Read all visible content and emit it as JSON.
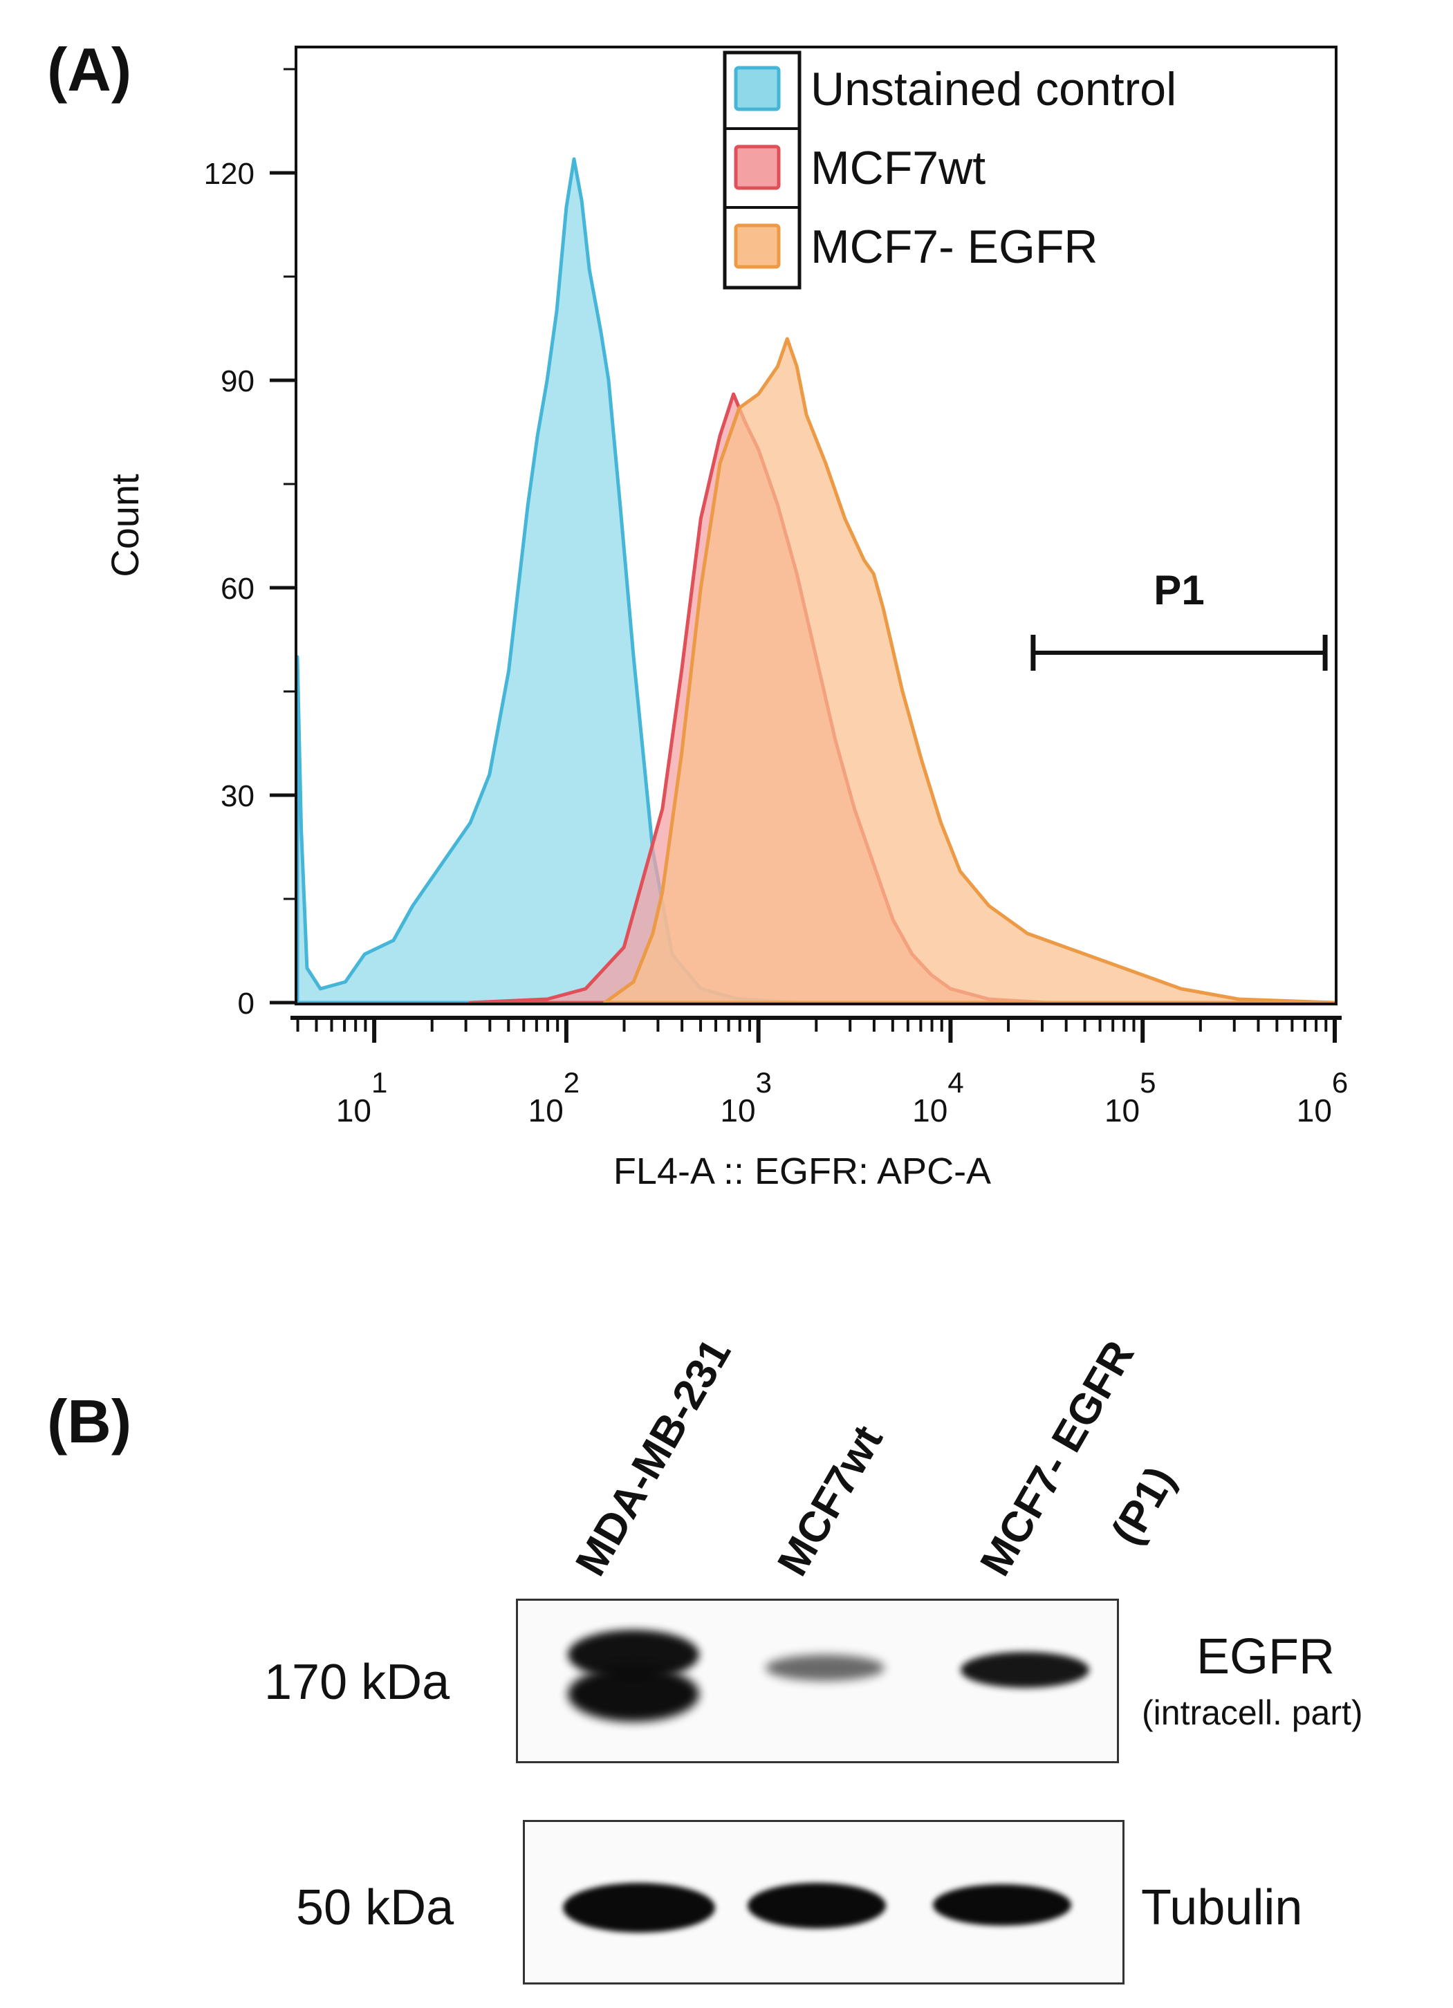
{
  "panel_a": {
    "label": "(A)",
    "gate_label": "P1"
  },
  "chart_data": {
    "type": "area",
    "title": "",
    "xlabel": "FL4-A :: EGFR: APC-A",
    "ylabel": "Count",
    "x_scale": "log10",
    "xlim": [
      0.6,
      6.0
    ],
    "ylim": [
      0,
      138
    ],
    "y_ticks": [
      0,
      30,
      60,
      90,
      120
    ],
    "x_ticks": [
      {
        "base": "10",
        "exp": "1",
        "value": 1
      },
      {
        "base": "10",
        "exp": "2",
        "value": 2
      },
      {
        "base": "10",
        "exp": "3",
        "value": 3
      },
      {
        "base": "10",
        "exp": "4",
        "value": 4
      },
      {
        "base": "10",
        "exp": "5",
        "value": 5
      },
      {
        "base": "10",
        "exp": "6",
        "value": 6
      }
    ],
    "gate": {
      "name": "P1",
      "x_start_log": 4.43,
      "x_end_log": 5.95,
      "y": 52
    },
    "legend": {
      "position": "top-right"
    },
    "series": [
      {
        "name": "Unstained control",
        "fill": "#8fd8ea",
        "stroke": "#45b6d8",
        "points": [
          [
            0.6,
            50
          ],
          [
            0.62,
            25
          ],
          [
            0.65,
            5
          ],
          [
            0.72,
            2
          ],
          [
            0.85,
            3
          ],
          [
            0.95,
            7
          ],
          [
            1.1,
            9
          ],
          [
            1.2,
            14
          ],
          [
            1.4,
            22
          ],
          [
            1.5,
            26
          ],
          [
            1.6,
            33
          ],
          [
            1.7,
            48
          ],
          [
            1.75,
            60
          ],
          [
            1.8,
            72
          ],
          [
            1.85,
            82
          ],
          [
            1.9,
            90
          ],
          [
            1.95,
            100
          ],
          [
            2.0,
            115
          ],
          [
            2.04,
            122
          ],
          [
            2.08,
            116
          ],
          [
            2.12,
            106
          ],
          [
            2.18,
            97
          ],
          [
            2.22,
            90
          ],
          [
            2.28,
            72
          ],
          [
            2.35,
            50
          ],
          [
            2.45,
            22
          ],
          [
            2.55,
            7
          ],
          [
            2.7,
            2
          ],
          [
            2.9,
            0.5
          ],
          [
            3.2,
            0
          ]
        ]
      },
      {
        "name": "MCF7wt",
        "fill": "#f4a1a3",
        "stroke": "#e05058",
        "points": [
          [
            1.5,
            0
          ],
          [
            1.9,
            0.5
          ],
          [
            2.1,
            2
          ],
          [
            2.3,
            8
          ],
          [
            2.5,
            28
          ],
          [
            2.6,
            48
          ],
          [
            2.7,
            70
          ],
          [
            2.8,
            82
          ],
          [
            2.87,
            88
          ],
          [
            2.93,
            84
          ],
          [
            3.0,
            80
          ],
          [
            3.1,
            72
          ],
          [
            3.2,
            62
          ],
          [
            3.3,
            50
          ],
          [
            3.4,
            38
          ],
          [
            3.5,
            28
          ],
          [
            3.6,
            20
          ],
          [
            3.7,
            12
          ],
          [
            3.8,
            7
          ],
          [
            3.9,
            4
          ],
          [
            4.0,
            2
          ],
          [
            4.2,
            0.5
          ],
          [
            4.5,
            0
          ]
        ]
      },
      {
        "name": "MCF7- EGFR",
        "fill": "#f9c08e",
        "stroke": "#ec9a45",
        "points": [
          [
            2.2,
            0
          ],
          [
            2.35,
            3
          ],
          [
            2.45,
            10
          ],
          [
            2.5,
            16
          ],
          [
            2.6,
            36
          ],
          [
            2.7,
            60
          ],
          [
            2.8,
            78
          ],
          [
            2.9,
            86
          ],
          [
            3.0,
            88
          ],
          [
            3.1,
            92
          ],
          [
            3.15,
            96
          ],
          [
            3.2,
            92
          ],
          [
            3.25,
            85
          ],
          [
            3.35,
            78
          ],
          [
            3.45,
            70
          ],
          [
            3.55,
            64
          ],
          [
            3.6,
            62
          ],
          [
            3.65,
            57
          ],
          [
            3.75,
            45
          ],
          [
            3.85,
            35
          ],
          [
            3.95,
            26
          ],
          [
            4.05,
            19
          ],
          [
            4.2,
            14
          ],
          [
            4.4,
            10
          ],
          [
            4.6,
            8
          ],
          [
            4.8,
            6
          ],
          [
            5.0,
            4
          ],
          [
            5.2,
            2
          ],
          [
            5.5,
            0.5
          ],
          [
            6.0,
            0
          ]
        ]
      }
    ]
  },
  "panel_b": {
    "label": "(B)",
    "lanes": [
      "MDA-MB-231",
      "MCF7wt",
      "MCF7- EGFR",
      "(P1)"
    ],
    "blots": [
      {
        "marker": "170 kDa",
        "protein": "EGFR",
        "note": "(intracell. part)"
      },
      {
        "marker": "50 kDa",
        "protein": "Tubulin"
      }
    ]
  }
}
